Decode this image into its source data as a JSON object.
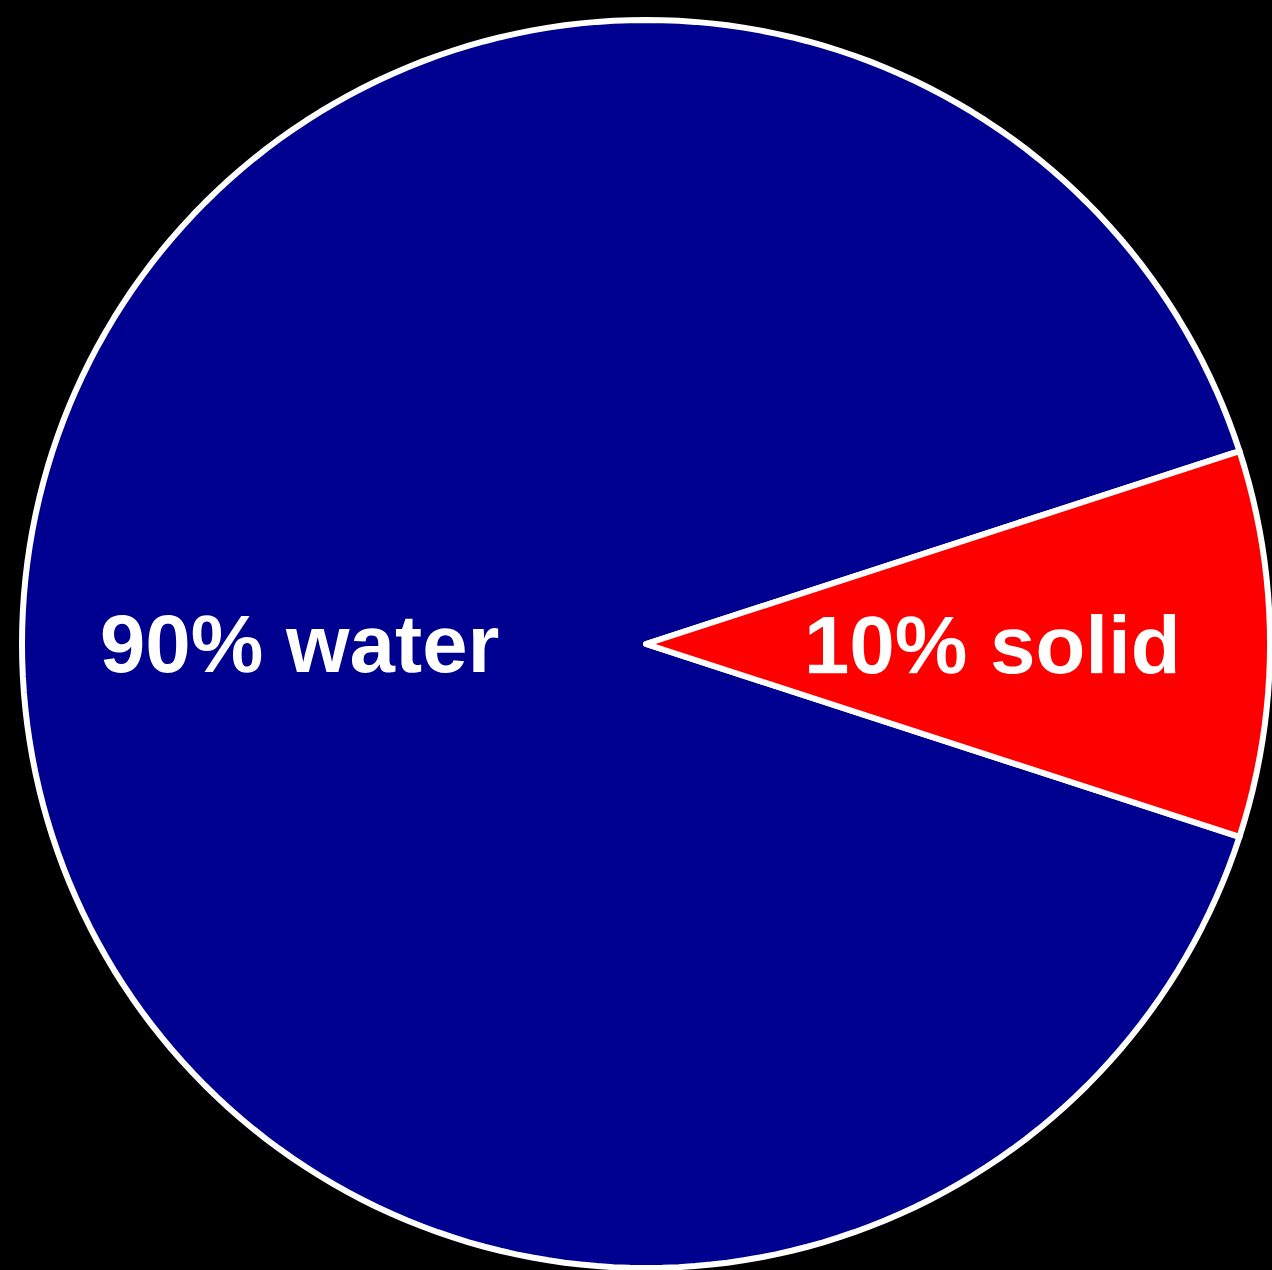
{
  "chart_data": {
    "type": "pie",
    "categories": [
      "90% water",
      "10% solid"
    ],
    "values": [
      90,
      10
    ],
    "colors": [
      "#000090",
      "#ff0000"
    ]
  }
}
